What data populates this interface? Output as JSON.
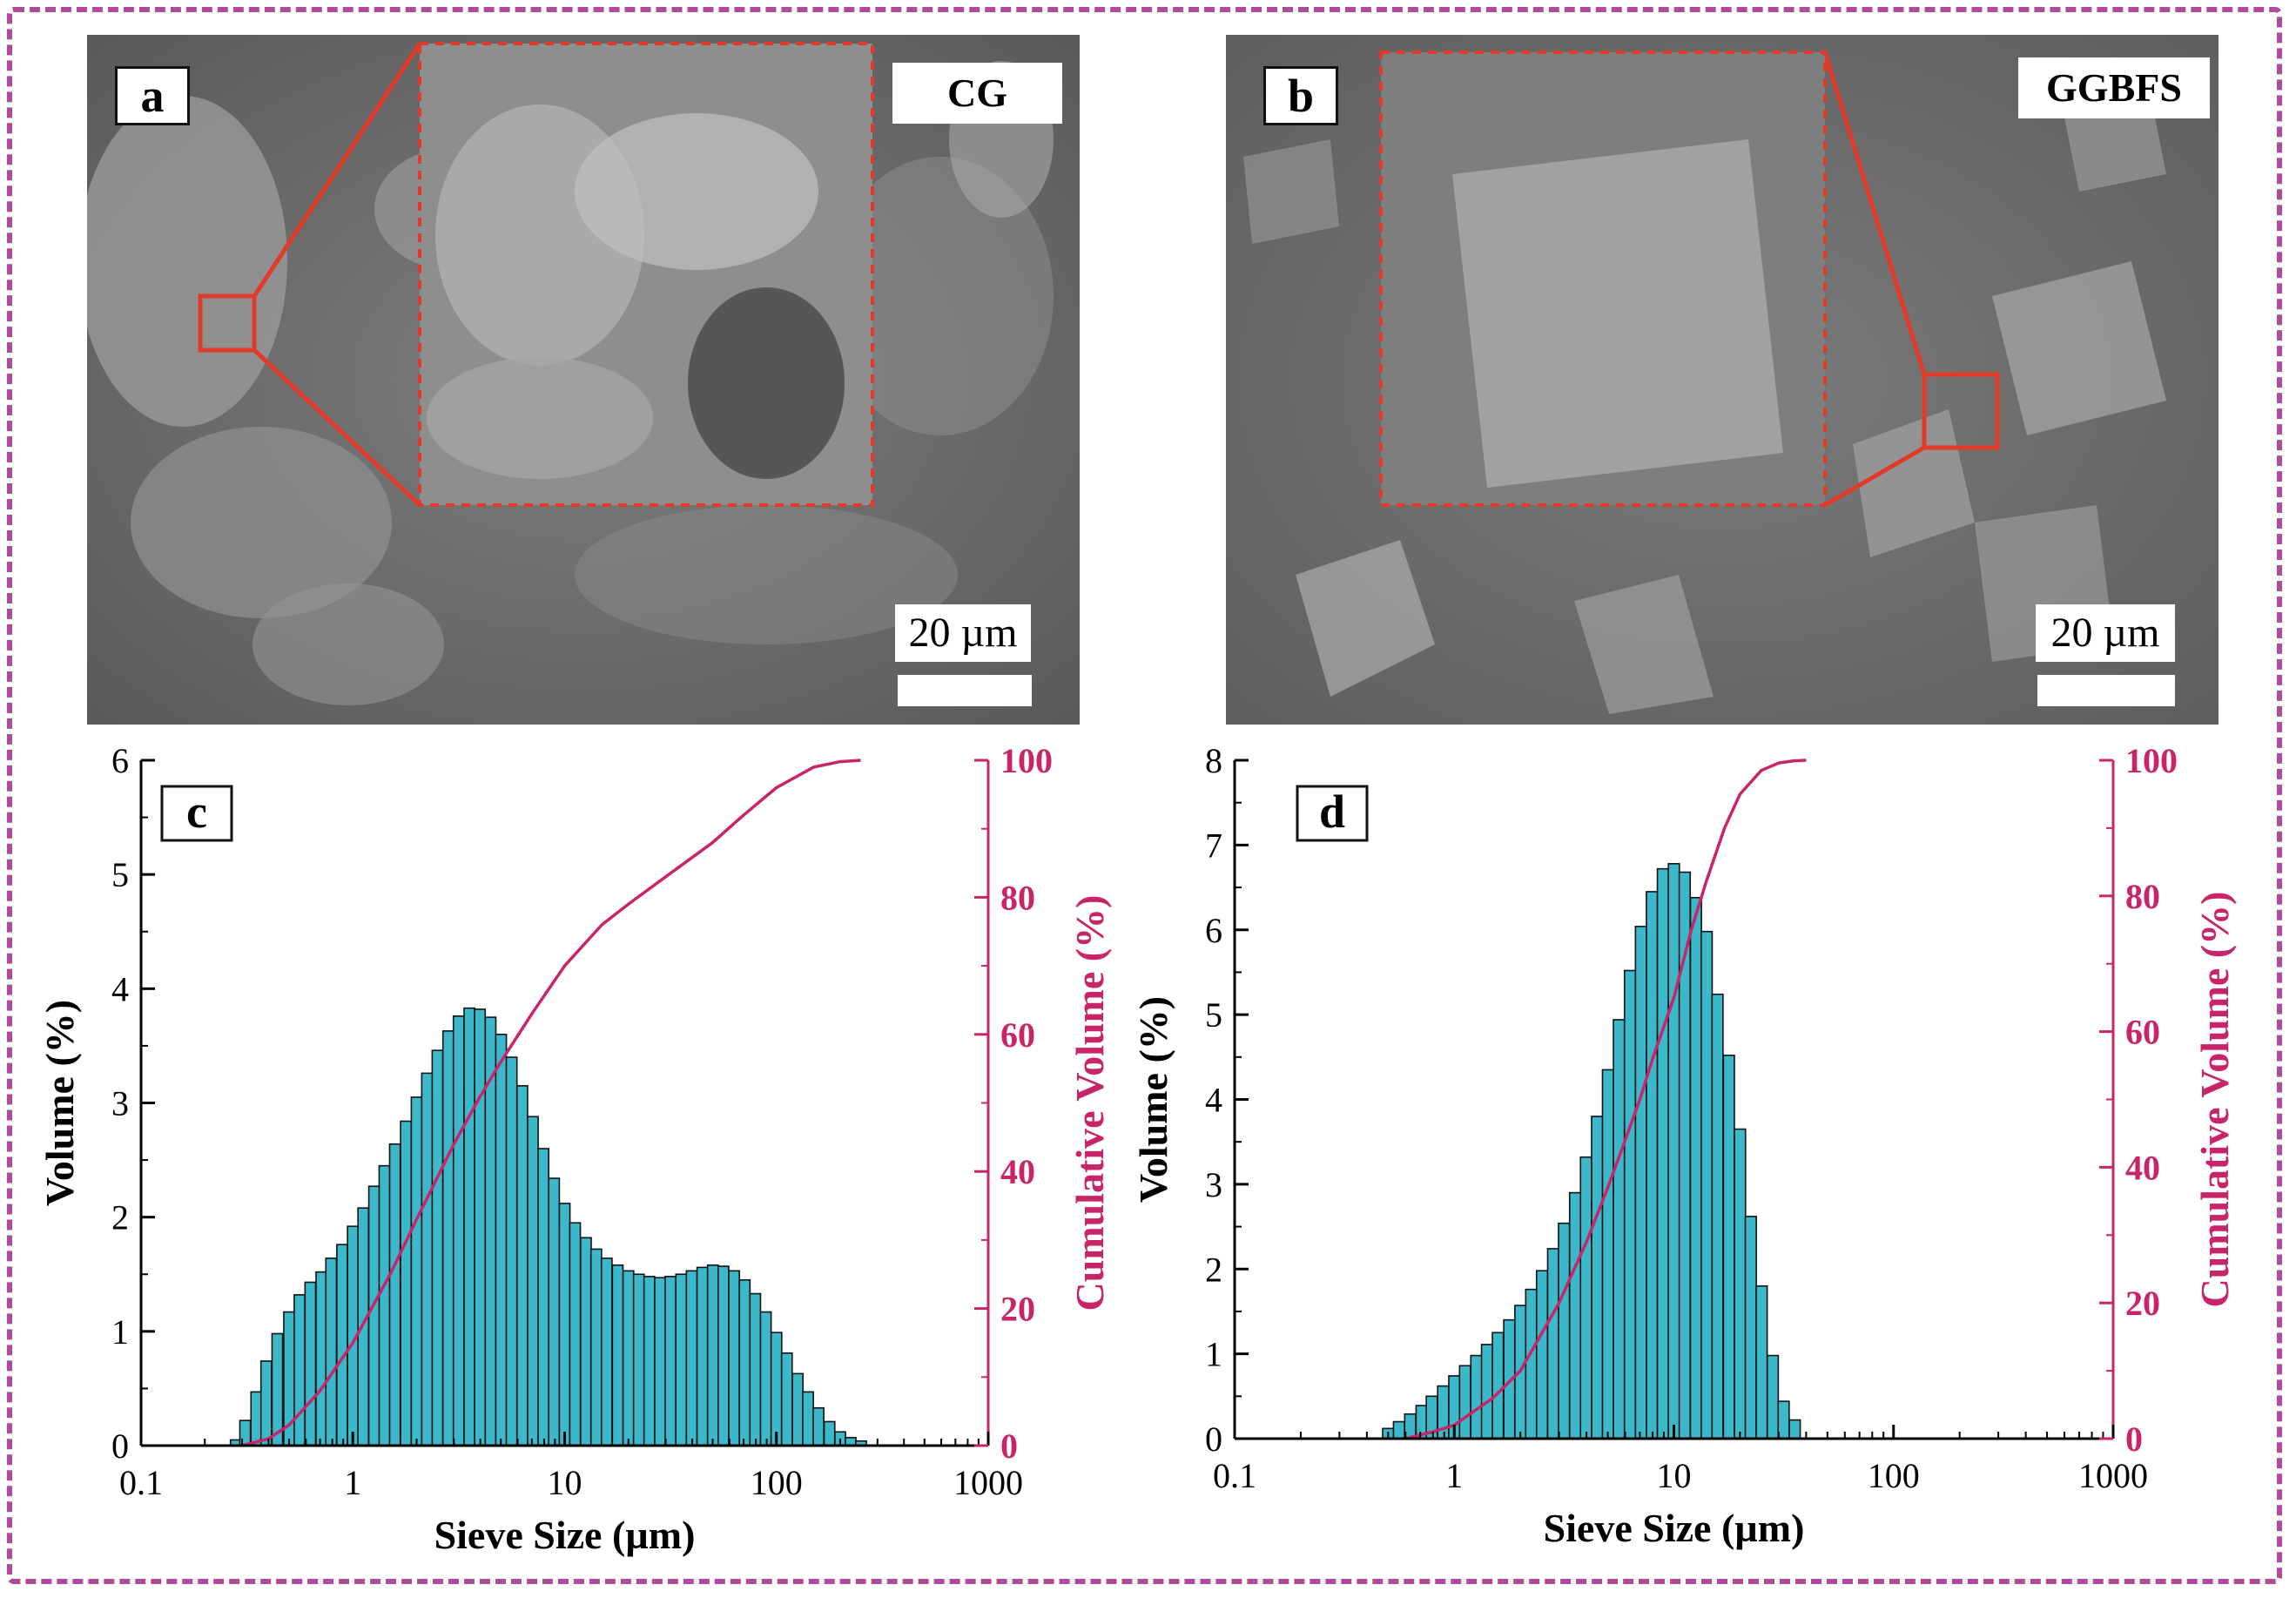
{
  "colors": {
    "bar_fill": "#3bb8c9",
    "bar_edge": "#111111",
    "cumulative": "#c8246a",
    "frame": "#b04a9a",
    "zoom_box": "#e03a2a"
  },
  "panels": {
    "a": {
      "label": "a",
      "sample": "CG",
      "scale": "20 µm"
    },
    "b": {
      "label": "b",
      "sample": "GGBFS",
      "scale": "20 µm"
    }
  },
  "chart_data": [
    {
      "panel": "c",
      "type": "bar",
      "xscale": "log",
      "xlabel": "Sieve Size  (µm)",
      "ylabel": "Volume (%)",
      "y2label": "Cumulative Volume (%)",
      "xlim": [
        0.1,
        1000
      ],
      "ylim": [
        0,
        6
      ],
      "y2lim": [
        0,
        100
      ],
      "xticks": [
        "0.1",
        "1",
        "10",
        "100",
        "1000"
      ],
      "yticks": [
        "0",
        "1",
        "2",
        "3",
        "4",
        "5",
        "6"
      ],
      "y2ticks": [
        "0",
        "20",
        "40",
        "60",
        "80",
        "100"
      ],
      "series": [
        {
          "name": "Volume (%)",
          "type": "bar",
          "x": [
            0.28,
            0.31,
            0.35,
            0.39,
            0.44,
            0.5,
            0.56,
            0.63,
            0.71,
            0.79,
            0.89,
            1.0,
            1.12,
            1.26,
            1.41,
            1.58,
            1.78,
            2.0,
            2.24,
            2.51,
            2.82,
            3.16,
            3.55,
            3.98,
            4.47,
            5.01,
            5.62,
            6.31,
            7.08,
            7.94,
            8.91,
            10.0,
            11.2,
            12.6,
            14.1,
            15.8,
            17.8,
            20.0,
            22.4,
            25.1,
            28.2,
            31.6,
            35.5,
            39.8,
            44.7,
            50.1,
            56.2,
            63.1,
            70.8,
            79.4,
            89.1,
            100,
            112,
            126,
            141,
            158,
            178,
            200,
            224,
            251
          ],
          "values": [
            0.05,
            0.22,
            0.47,
            0.74,
            0.98,
            1.17,
            1.32,
            1.43,
            1.52,
            1.64,
            1.76,
            1.92,
            2.08,
            2.27,
            2.45,
            2.64,
            2.84,
            3.05,
            3.26,
            3.46,
            3.63,
            3.76,
            3.83,
            3.82,
            3.75,
            3.6,
            3.4,
            3.15,
            2.88,
            2.6,
            2.34,
            2.12,
            1.95,
            1.82,
            1.72,
            1.64,
            1.58,
            1.53,
            1.5,
            1.48,
            1.47,
            1.48,
            1.5,
            1.53,
            1.56,
            1.58,
            1.57,
            1.53,
            1.45,
            1.33,
            1.17,
            0.99,
            0.81,
            0.63,
            0.47,
            0.33,
            0.21,
            0.12,
            0.07,
            0.04
          ]
        },
        {
          "name": "Cumulative Volume (%)",
          "type": "line",
          "x": [
            0.3,
            0.4,
            0.5,
            0.7,
            1.0,
            1.5,
            2.0,
            3.0,
            4.0,
            5.0,
            7.0,
            10,
            15,
            20,
            30,
            50,
            70,
            100,
            150,
            200,
            250
          ],
          "values": [
            0,
            1,
            3,
            8,
            15,
            25,
            33,
            44,
            51,
            56,
            63,
            70,
            76,
            79,
            83,
            88,
            92,
            96,
            99,
            99.8,
            100
          ]
        }
      ]
    },
    {
      "panel": "d",
      "type": "bar",
      "xscale": "log",
      "xlabel": "Sieve Size  (µm)",
      "ylabel": "Volume (%)",
      "y2label": "Cumulative Volume (%)",
      "xlim": [
        0.1,
        1000
      ],
      "ylim": [
        0,
        8
      ],
      "y2lim": [
        0,
        100
      ],
      "xticks": [
        "0.1",
        "1",
        "10",
        "100",
        "1000"
      ],
      "yticks": [
        "0",
        "1",
        "2",
        "3",
        "4",
        "5",
        "6",
        "7",
        "8"
      ],
      "y2ticks": [
        "0",
        "20",
        "40",
        "60",
        "80",
        "100"
      ],
      "series": [
        {
          "name": "Volume (%)",
          "type": "bar",
          "x": [
            0.5,
            0.56,
            0.63,
            0.71,
            0.79,
            0.89,
            1.0,
            1.12,
            1.26,
            1.41,
            1.58,
            1.78,
            2.0,
            2.24,
            2.51,
            2.82,
            3.16,
            3.55,
            3.98,
            4.47,
            5.01,
            5.62,
            6.31,
            7.08,
            7.94,
            8.91,
            10.0,
            11.2,
            12.6,
            14.1,
            15.8,
            17.8,
            20.0,
            22.4,
            25.1,
            28.2,
            31.6,
            35.5
          ],
          "values": [
            0.12,
            0.2,
            0.29,
            0.39,
            0.5,
            0.62,
            0.74,
            0.86,
            0.98,
            1.11,
            1.25,
            1.4,
            1.57,
            1.76,
            1.98,
            2.24,
            2.54,
            2.9,
            3.32,
            3.8,
            4.35,
            4.94,
            5.52,
            6.04,
            6.45,
            6.72,
            6.78,
            6.68,
            6.38,
            5.98,
            5.24,
            4.52,
            3.65,
            2.62,
            1.8,
            0.98,
            0.44,
            0.22
          ]
        },
        {
          "name": "Cumulative Volume (%)",
          "type": "line",
          "x": [
            0.6,
            0.8,
            1.0,
            1.5,
            2.0,
            3.0,
            4.0,
            5.0,
            6.0,
            7.0,
            8.0,
            10,
            12,
            14,
            17,
            20,
            25,
            30,
            35,
            40
          ],
          "values": [
            0,
            1,
            2,
            6,
            10,
            20,
            29,
            37,
            44,
            50,
            56,
            65,
            75,
            82,
            90,
            95,
            98.5,
            99.6,
            99.9,
            100
          ]
        }
      ]
    }
  ]
}
